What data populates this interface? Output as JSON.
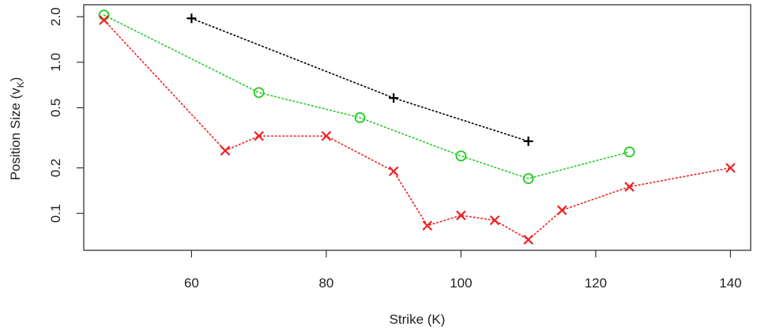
{
  "chart_data": {
    "type": "scatter",
    "xlabel": "Strike (K)",
    "ylabel_main": "Position Size (v",
    "ylabel_sub": "K",
    "ylabel_close": ")",
    "x_scale": "linear",
    "y_scale": "log",
    "xlim": [
      44,
      143
    ],
    "ylim": [
      0.057,
      2.4
    ],
    "x_ticks": [
      60,
      80,
      100,
      120,
      140
    ],
    "x_tick_labels": [
      "60",
      "80",
      "100",
      "120",
      "140"
    ],
    "y_ticks": [
      0.1,
      0.2,
      0.5,
      1.0,
      2.0
    ],
    "y_tick_labels": [
      "0.1",
      "0.2",
      "0.5",
      "1.0",
      "2.0"
    ],
    "grid": false,
    "series": [
      {
        "marker": "plus",
        "color": "#000000",
        "line_style": "dotted",
        "points": [
          {
            "x": 60,
            "y": 1.95
          },
          {
            "x": 90,
            "y": 0.58
          },
          {
            "x": 110,
            "y": 0.3
          }
        ]
      },
      {
        "marker": "circle",
        "color": "#22cc22",
        "line_style": "dotted",
        "points": [
          {
            "x": 47,
            "y": 2.05
          },
          {
            "x": 70,
            "y": 0.63
          },
          {
            "x": 85,
            "y": 0.43
          },
          {
            "x": 100,
            "y": 0.24
          },
          {
            "x": 110,
            "y": 0.17
          },
          {
            "x": 125,
            "y": 0.255
          }
        ]
      },
      {
        "marker": "x",
        "color": "#ee2222",
        "line_style": "dotted",
        "points": [
          {
            "x": 47,
            "y": 1.9
          },
          {
            "x": 65,
            "y": 0.26
          },
          {
            "x": 70,
            "y": 0.325
          },
          {
            "x": 80,
            "y": 0.325
          },
          {
            "x": 90,
            "y": 0.19
          },
          {
            "x": 95,
            "y": 0.083
          },
          {
            "x": 100,
            "y": 0.097
          },
          {
            "x": 105,
            "y": 0.09
          },
          {
            "x": 110,
            "y": 0.067
          },
          {
            "x": 115,
            "y": 0.105
          },
          {
            "x": 125,
            "y": 0.15
          },
          {
            "x": 140,
            "y": 0.2
          }
        ]
      }
    ]
  }
}
